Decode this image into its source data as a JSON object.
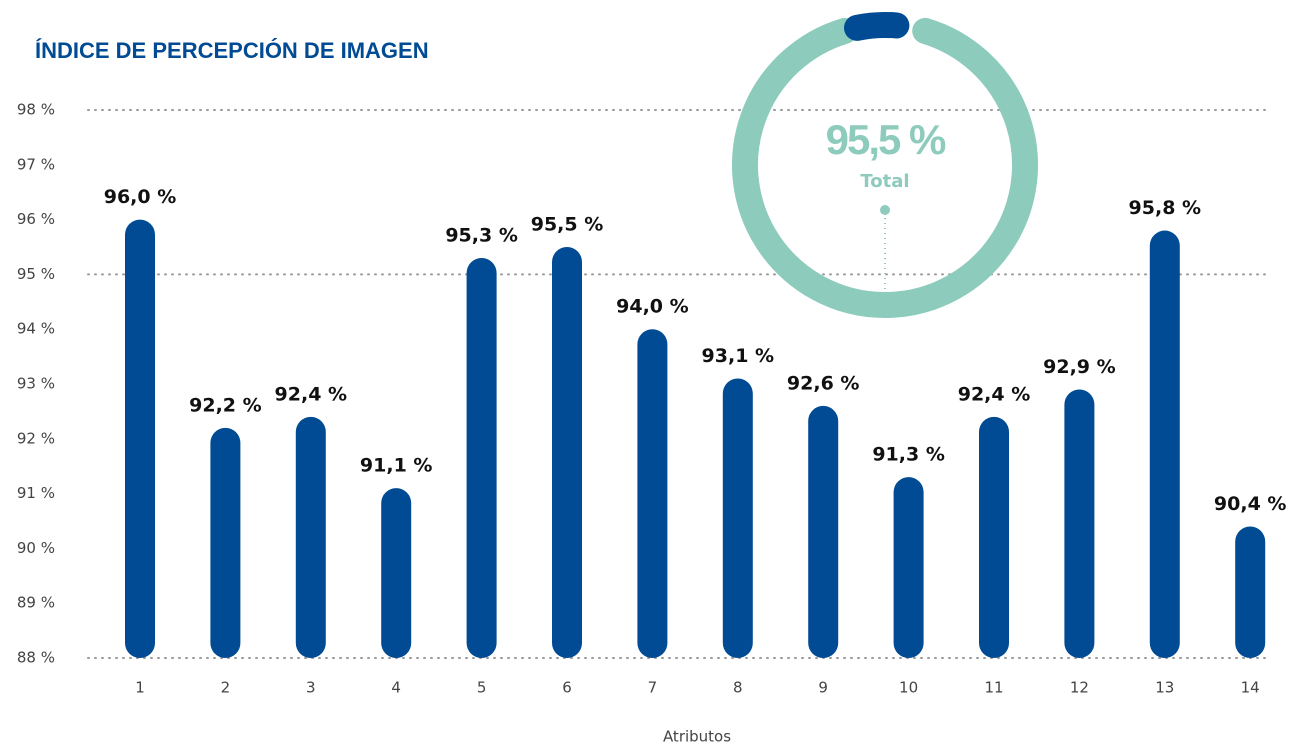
{
  "chart_data": {
    "type": "bar",
    "title": "ÍNDICE DE PERCEPCIÓN DE IMAGEN",
    "x_label": "Atributos",
    "categories": [
      "1",
      "2",
      "3",
      "4",
      "5",
      "6",
      "7",
      "8",
      "9",
      "10",
      "11",
      "12",
      "13",
      "14"
    ],
    "values": [
      96.0,
      92.2,
      92.4,
      91.1,
      95.3,
      95.5,
      94.0,
      93.1,
      92.6,
      91.3,
      92.4,
      92.9,
      95.8,
      90.4
    ],
    "value_labels": [
      "96,0 %",
      "92,2 %",
      "92,4 %",
      "91,1 %",
      "95,3 %",
      "95,5 %",
      "94,0 %",
      "93,1 %",
      "92,6 %",
      "91,3 %",
      "92,4 %",
      "92,9 %",
      "95,8 %",
      "90,4 %"
    ],
    "color": "#004b93",
    "ylim": [
      88,
      98
    ],
    "yticks": [
      {
        "value": 88,
        "label": "88 %"
      },
      {
        "value": 89,
        "label": "89 %"
      },
      {
        "value": 90,
        "label": "90 %"
      },
      {
        "value": 91,
        "label": "91 %"
      },
      {
        "value": 92,
        "label": "92 %"
      },
      {
        "value": 93,
        "label": "93 %"
      },
      {
        "value": 94,
        "label": "94 %"
      },
      {
        "value": 95,
        "label": "95 %"
      },
      {
        "value": 96,
        "label": "96 %"
      },
      {
        "value": 97,
        "label": "97 %"
      },
      {
        "value": 98,
        "label": "98 %"
      }
    ],
    "gridlines": [
      88,
      95,
      98
    ],
    "gauge": {
      "value": 95.5,
      "value_label": "95,5 %",
      "label": "Total",
      "color": "#8dcbbd",
      "cap_color": "#004b93"
    }
  }
}
